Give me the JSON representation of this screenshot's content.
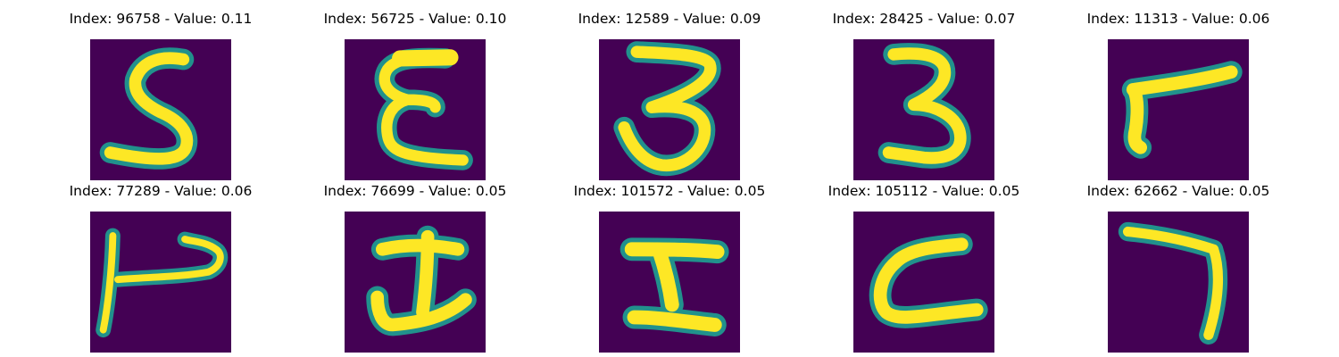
{
  "colors": {
    "background": "#440154",
    "stroke_mid": "#21918c",
    "stroke_edge": "#5ec962",
    "stroke_core": "#fde725"
  },
  "panels": [
    {
      "title": "Index: 96758 - Value: 0.11",
      "glyph": "digit-5-shape"
    },
    {
      "title": "Index: 56725 - Value: 0.10",
      "glyph": "e-like-shape"
    },
    {
      "title": "Index: 12589 - Value: 0.09",
      "glyph": "digit-3-shape"
    },
    {
      "title": "Index: 28425 - Value: 0.07",
      "glyph": "digit-3-shape"
    },
    {
      "title": "Index: 11313 - Value: 0.06",
      "glyph": "rotated-7-shape"
    },
    {
      "title": "Index: 77289 - Value: 0.06",
      "glyph": "hook-shape"
    },
    {
      "title": "Index: 76699 - Value: 0.05",
      "glyph": "i-like-shape"
    },
    {
      "title": "Index: 101572 - Value: 0.05",
      "glyph": "i-like-shape"
    },
    {
      "title": "Index: 105112 - Value: 0.05",
      "glyph": "c-like-shape"
    },
    {
      "title": "Index: 62662 - Value: 0.05",
      "glyph": "digit-7-shape"
    }
  ]
}
